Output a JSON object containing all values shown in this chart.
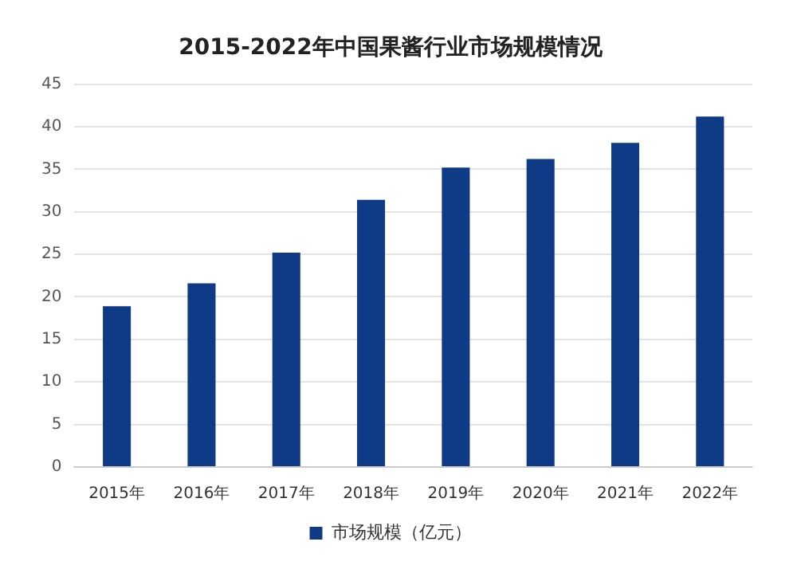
{
  "chart_data": {
    "type": "bar",
    "title": "2015-2022年中国果酱行业市场规模情况",
    "categories": [
      "2015年",
      "2016年",
      "2017年",
      "2018年",
      "2019年",
      "2020年",
      "2021年",
      "2022年"
    ],
    "series": [
      {
        "name": "市场规模（亿元）",
        "color": "#0f3a86",
        "values": [
          18.9,
          21.6,
          25.2,
          31.4,
          35.2,
          36.2,
          38.1,
          41.2
        ]
      }
    ],
    "ylim": [
      0,
      45
    ],
    "yticks": [
      0,
      5,
      10,
      15,
      20,
      25,
      30,
      35,
      40,
      45
    ],
    "grid": "y",
    "legend": "bottom"
  }
}
